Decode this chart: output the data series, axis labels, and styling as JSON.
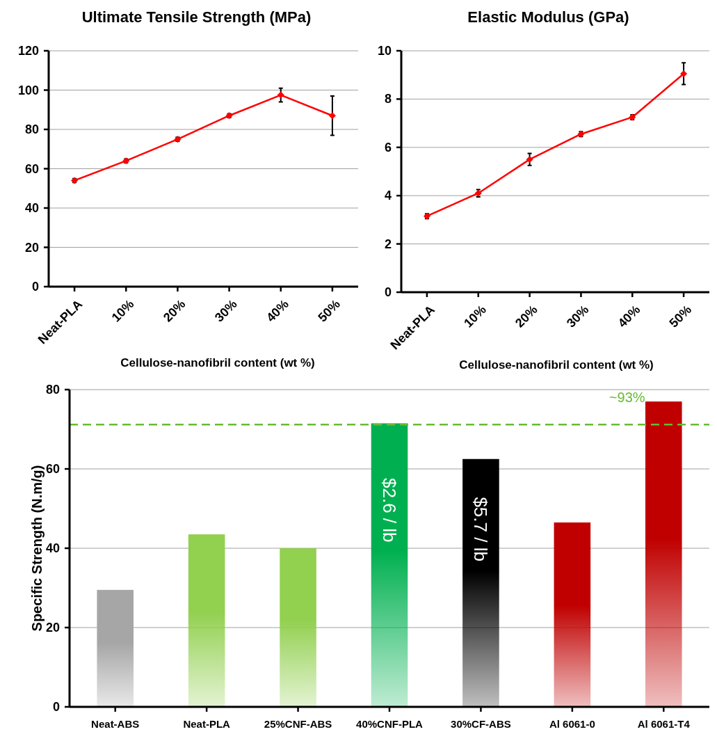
{
  "chart_data": [
    {
      "type": "line",
      "title": "Ultimate Tensile Strength (MPa)",
      "xlabel": "Cellulose-nanofibril content (wt %)",
      "categories": [
        "Neat-PLA",
        "10%",
        "20%",
        "30%",
        "40%",
        "50%"
      ],
      "series": [
        {
          "color": "#ff0000",
          "values": [
            54,
            64,
            75,
            87,
            97.5,
            87
          ],
          "errors": [
            1,
            1,
            1,
            1,
            3.5,
            10
          ]
        }
      ],
      "ylim": [
        0,
        120
      ],
      "yticks": [
        0,
        20,
        40,
        60,
        80,
        100,
        120
      ],
      "grid": "y",
      "marker": "diamond",
      "line_style": "solid"
    },
    {
      "type": "line",
      "title": "Elastic Modulus (GPa)",
      "xlabel": "Cellulose-nanofibril content (wt %)",
      "categories": [
        "Neat-PLA",
        "10%",
        "20%",
        "30%",
        "40%",
        "50%"
      ],
      "series": [
        {
          "color": "#ff0000",
          "values": [
            3.15,
            4.1,
            5.5,
            6.55,
            7.25,
            9.05
          ],
          "errors": [
            0.1,
            0.15,
            0.25,
            0.1,
            0.1,
            0.45
          ]
        }
      ],
      "ylim": [
        0,
        10
      ],
      "yticks": [
        0,
        2,
        4,
        6,
        8,
        10
      ],
      "grid": "y",
      "marker": "diamond",
      "line_style": "solid"
    },
    {
      "type": "bar",
      "ylabel": "Specific Strength (N.m/g)",
      "categories": [
        "Neat-ABS",
        "Neat-PLA",
        "25%CNF-ABS",
        "40%CNF-PLA",
        "30%CF-ABS",
        "Al 6061-0",
        "Al 6061-T4"
      ],
      "values": [
        29.5,
        43.5,
        40,
        71.5,
        62.5,
        46.5,
        77
      ],
      "colors": [
        "#a6a6a6",
        "#92d050",
        "#92d050",
        "#00b050",
        "#000000",
        "#c00000",
        "#c00000"
      ],
      "ylim": [
        0,
        80
      ],
      "yticks": [
        0,
        20,
        40,
        60,
        80
      ],
      "grid": "y",
      "ref_lines": [
        {
          "axis": "y",
          "value": 71.2,
          "color": "#66bb33",
          "line_style": "dashed"
        }
      ],
      "annotations": [
        "$2.6 / lb",
        "$5.7 / lb",
        "~93%"
      ]
    }
  ]
}
